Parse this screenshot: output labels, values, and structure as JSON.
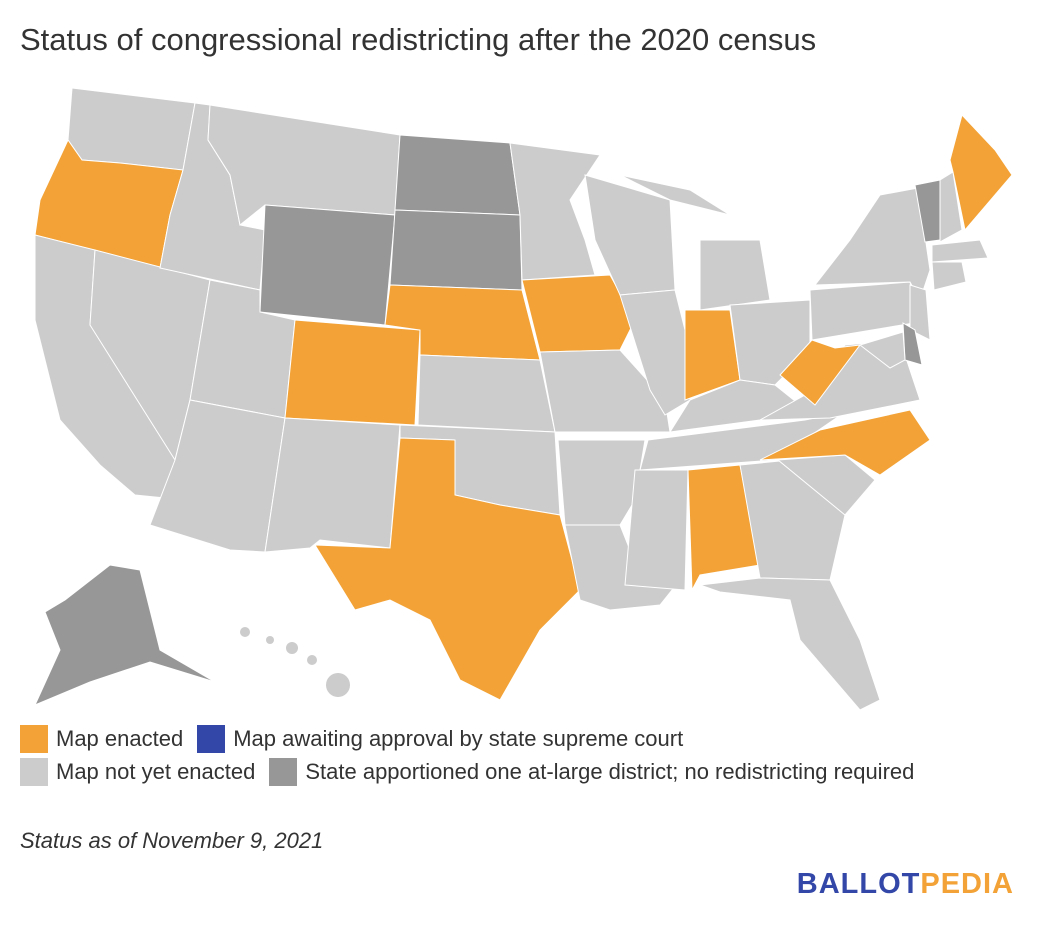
{
  "title": "Status of congressional redistricting after the 2020 census",
  "colors": {
    "enacted": "#f2a236",
    "awaiting": "#3347a8",
    "not_yet": "#cccccc",
    "at_large": "#979797",
    "border": "#ffffff"
  },
  "legend": [
    {
      "key": "enacted",
      "label": "Map enacted"
    },
    {
      "key": "awaiting",
      "label": "Map awaiting approval by state supreme court"
    },
    {
      "key": "not_yet",
      "label": "Map not yet enacted"
    },
    {
      "key": "at_large",
      "label": "State apportioned one at-large district; no redistricting required"
    }
  ],
  "states": {
    "WA": "not_yet",
    "OR": "enacted",
    "CA": "not_yet",
    "NV": "not_yet",
    "ID": "not_yet",
    "MT": "not_yet",
    "WY": "at_large",
    "UT": "not_yet",
    "CO": "enacted",
    "AZ": "not_yet",
    "NM": "not_yet",
    "ND": "at_large",
    "SD": "at_large",
    "NE": "enacted",
    "KS": "not_yet",
    "OK": "not_yet",
    "TX": "enacted",
    "MN": "not_yet",
    "IA": "enacted",
    "MO": "not_yet",
    "AR": "not_yet",
    "LA": "not_yet",
    "WI": "not_yet",
    "IL": "not_yet",
    "MI": "not_yet",
    "IN": "enacted",
    "OH": "not_yet",
    "KY": "not_yet",
    "TN": "not_yet",
    "MS": "not_yet",
    "AL": "enacted",
    "GA": "not_yet",
    "FL": "not_yet",
    "SC": "not_yet",
    "NC": "enacted",
    "VA": "not_yet",
    "WV": "enacted",
    "PA": "not_yet",
    "NY": "not_yet",
    "VT": "at_large",
    "NH": "not_yet",
    "ME": "enacted",
    "MA": "not_yet",
    "CT": "not_yet",
    "NJ": "not_yet",
    "DE": "at_large",
    "MD": "not_yet",
    "AK": "at_large",
    "HI": "not_yet"
  },
  "note": "Status as of November 9, 2021",
  "logo": {
    "part1": "BALLOT",
    "part2": "PEDIA",
    "color1": "#3347a8",
    "color2": "#f2a236"
  }
}
